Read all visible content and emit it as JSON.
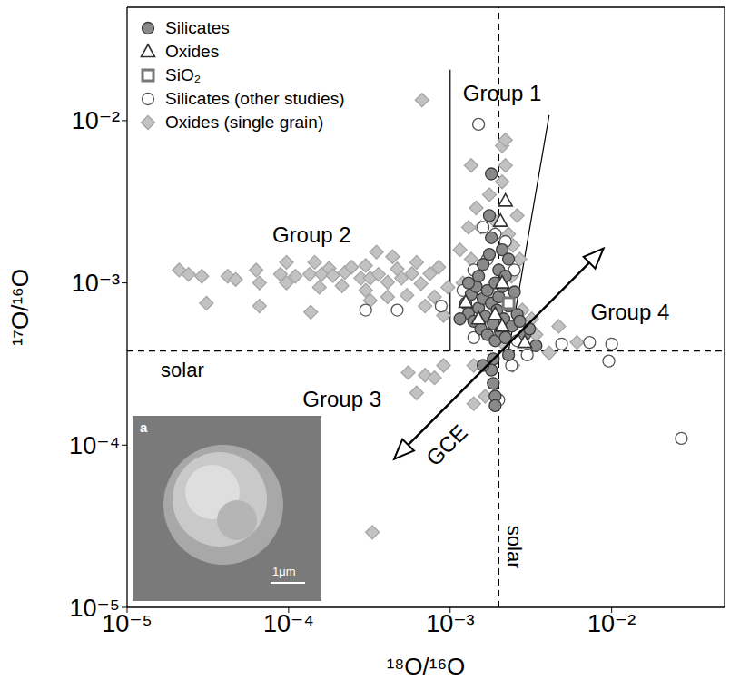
{
  "chart_data": {
    "type": "scatter",
    "x_label": "¹⁸O/¹⁶O",
    "y_label": "¹⁷O/¹⁶O",
    "log": true,
    "xlim": [
      1e-05,
      0.05
    ],
    "ylim": [
      1e-05,
      0.05
    ],
    "xticks": [
      {
        "value": 1e-05,
        "label": "10⁻⁵"
      },
      {
        "value": 0.0001,
        "label": "10⁻⁴"
      },
      {
        "value": 0.001,
        "label": "10⁻³"
      },
      {
        "value": 0.01,
        "label": "10⁻²"
      }
    ],
    "yticks": [
      {
        "value": 1e-05,
        "label": "10⁻⁵"
      },
      {
        "value": 0.0001,
        "label": "10⁻⁴"
      },
      {
        "value": 0.001,
        "label": "10⁻³"
      },
      {
        "value": 0.01,
        "label": "10⁻²"
      }
    ],
    "legend": "upper left",
    "series": [
      {
        "name": "Oxides (single grain)",
        "color": "#c2c2c2",
        "marker": "diamond",
        "x": [
          2.1e-05,
          2.4e-05,
          2.9e-05,
          3.1e-05,
          4.2e-05,
          4.7e-05,
          6.3e-05,
          6.6e-05,
          6.6e-05,
          8.9e-05,
          9.7e-05,
          9.7e-05,
          0.00011,
          0.000135,
          0.000137,
          0.000145,
          0.000155,
          0.00016,
          0.000178,
          0.000188,
          0.000214,
          0.000223,
          0.000245,
          0.00028,
          0.0003,
          0.0003,
          0.00032,
          0.00032,
          0.00036,
          0.00041,
          0.00041,
          0.00044,
          0.00047,
          0.0005,
          0.00054,
          0.00058,
          0.00062,
          0.00066,
          0.0007,
          0.00075,
          0.0008,
          0.00085,
          0.00091,
          0.00097,
          0.00035,
          0.0021,
          0.0022,
          0.0021,
          0.00175,
          0.00145,
          0.00155,
          0.0019,
          0.00245,
          0.0024,
          0.00135,
          0.0012,
          0.0018,
          0.00195,
          0.0021,
          0.00245,
          0.0014,
          0.00091,
          0.0007,
          0.00062,
          0.0008,
          0.0014,
          0.00165,
          0.00055,
          0.00033,
          0.0034,
          0.0047,
          0.0061,
          0.0041,
          0.0028,
          0.0032,
          0.00067,
          0.00135,
          0.0026,
          0.0023,
          0.0013,
          0.00115,
          0.0027,
          0.0022
        ],
        "y": [
          0.0012,
          0.00113,
          0.0011,
          0.00075,
          0.0011,
          0.00105,
          0.0012,
          0.001,
          0.00072,
          0.00113,
          0.00134,
          0.001,
          0.0011,
          0.00113,
          0.00066,
          0.00134,
          0.00094,
          0.00113,
          0.00123,
          0.00111,
          0.00096,
          0.00116,
          0.00125,
          0.00107,
          0.00128,
          0.0009,
          0.00107,
          0.00078,
          0.00113,
          0.00101,
          0.00082,
          0.00145,
          0.00122,
          0.00107,
          0.00084,
          0.00114,
          0.00134,
          0.00099,
          0.00072,
          0.00114,
          0.00082,
          0.00125,
          0.00063,
          0.00094,
          0.00155,
          0.007,
          0.0053,
          0.0042,
          0.0035,
          0.0029,
          0.0022,
          0.0024,
          0.0017,
          0.0011,
          0.0014,
          0.001,
          0.00085,
          0.00056,
          0.00043,
          0.00031,
          0.00031,
          0.00031,
          0.00027,
          0.00021,
          0.00026,
          0.00018,
          0.0002,
          0.00028,
          2.9e-05,
          0.00048,
          0.00054,
          0.00043,
          0.00037,
          0.00068,
          0.0006,
          0.0134,
          0.0053,
          0.0026,
          0.002,
          0.0022,
          0.0016,
          0.0014,
          0.0076
        ]
      },
      {
        "name": "Silicates (other studies)",
        "color": "#555555",
        "marker": "open-circle",
        "x": [
          0.0015,
          0.00088,
          0.00047,
          0.0003,
          0.01,
          0.0073,
          0.0049,
          0.0096,
          0.027,
          0.0014,
          0.0016,
          0.0019,
          0.0022,
          0.0014,
          0.0026,
          0.003,
          0.002,
          0.0024,
          0.0017,
          0.0025,
          0.0012
        ],
        "y": [
          0.0095,
          0.00072,
          0.00068,
          0.00068,
          0.00042,
          0.00043,
          0.00042,
          0.00033,
          0.00011,
          0.0012,
          0.0022,
          0.002,
          0.0018,
          0.00046,
          0.00044,
          0.00036,
          0.00019,
          0.00031,
          0.0014,
          0.0012,
          0.0009
        ]
      },
      {
        "name": "Silicates",
        "color": "#8a8a8a",
        "marker": "circle",
        "x": [
          0.00125,
          0.0013,
          0.00135,
          0.0014,
          0.00145,
          0.0015,
          0.0015,
          0.00155,
          0.0016,
          0.0016,
          0.00165,
          0.0017,
          0.0017,
          0.00175,
          0.0018,
          0.0018,
          0.00185,
          0.0019,
          0.0019,
          0.00195,
          0.002,
          0.002,
          0.00205,
          0.0021,
          0.0021,
          0.00215,
          0.0022,
          0.0022,
          0.0023,
          0.0023,
          0.0024,
          0.0025,
          0.0026,
          0.0027,
          0.0029,
          0.0031,
          0.0034,
          0.0018,
          0.00175,
          0.00185,
          0.0018,
          0.00185,
          0.0019,
          0.0019,
          0.0016,
          0.0023,
          0.00115,
          0.0013
        ],
        "y": [
          0.00075,
          0.00065,
          0.00085,
          0.00058,
          0.00095,
          0.0007,
          0.0011,
          0.00052,
          0.0008,
          0.0013,
          0.00062,
          0.0009,
          0.00048,
          0.0015,
          0.00075,
          0.0019,
          0.00056,
          0.001,
          0.00044,
          0.00068,
          0.0012,
          0.00082,
          0.0005,
          0.0016,
          0.00095,
          0.0006,
          0.00046,
          0.0011,
          0.00072,
          0.0014,
          0.00054,
          0.00088,
          0.00064,
          0.00058,
          0.00048,
          0.00052,
          0.00041,
          0.0047,
          0.0026,
          0.00034,
          0.00029,
          0.00024,
          0.0002,
          0.000175,
          0.00031,
          0.00036,
          0.0006,
          0.001
        ]
      },
      {
        "name": "Oxides",
        "color": "#333333",
        "marker": "open-triangle",
        "x": [
          0.0022,
          0.00205,
          0.0021,
          0.00125,
          0.0015,
          0.0021,
          0.0019,
          0.0029
        ],
        "y": [
          0.0032,
          0.0024,
          0.001,
          0.00076,
          0.0006,
          0.00054,
          0.00064,
          0.00043
        ]
      },
      {
        "name": "SiO₂",
        "color": "#777777",
        "marker": "open-square",
        "x": [
          0.0023
        ],
        "y": [
          0.00075
        ]
      }
    ],
    "reference_lines": [
      {
        "x": 0.002,
        "label": "solar",
        "label_y": 2.35e-05,
        "line_style": "dashed"
      },
      {
        "y": 0.00038,
        "label": "solar",
        "label_x": 2.2e-05,
        "line_style": "dashed"
      }
    ],
    "boundary_lines": [
      {
        "x": [
          0.001,
          0.001
        ],
        "y": [
          0.00038,
          0.0206
        ]
      },
      {
        "x": [
          0.0023,
          0.0041
        ],
        "y": [
          0.00038,
          0.0108
        ]
      }
    ],
    "annotations": [
      {
        "text": "Group 1",
        "x": 0.0021,
        "y": 0.0148
      },
      {
        "text": "Group 2",
        "x": 0.000139,
        "y": 0.00198
      },
      {
        "text": "Group 3",
        "x": 0.000214,
        "y": 0.000193
      },
      {
        "text": "Group 4",
        "x": 0.013,
        "y": 0.000665
      }
    ],
    "arrow": {
      "label": "GCE",
      "x": [
        0.00045,
        0.0089
      ],
      "y": [
        8.2e-05,
        0.00163
      ],
      "label_x": 0.00095,
      "label_y": 0.0001
    },
    "inset": {
      "label": "a",
      "scale_bar": "1μm"
    }
  }
}
